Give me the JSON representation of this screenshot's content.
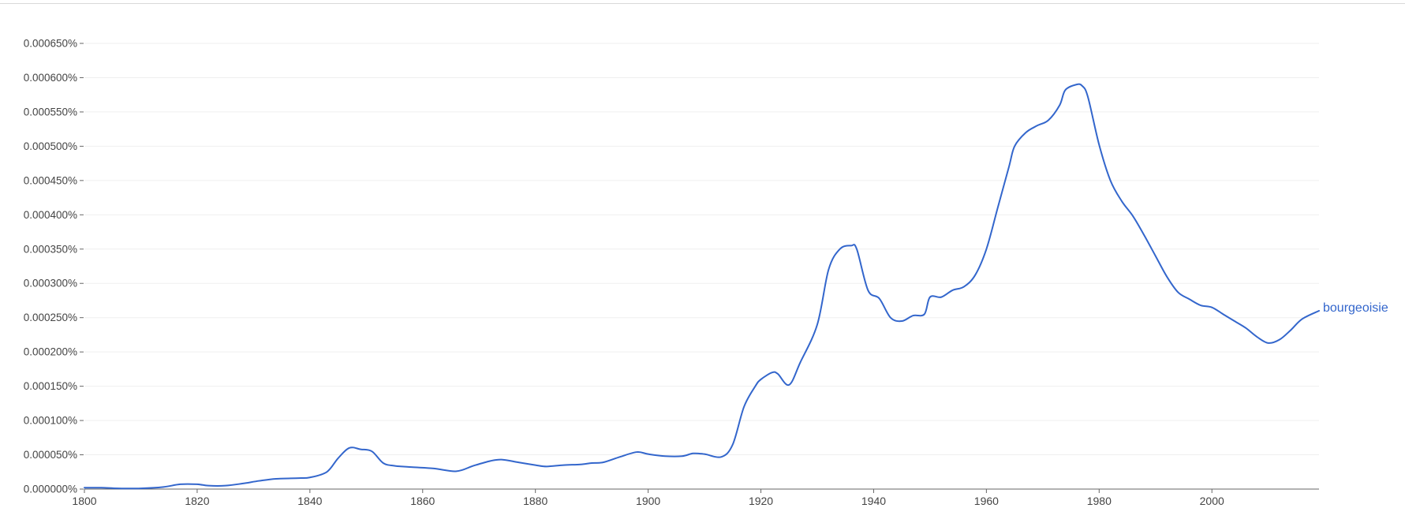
{
  "chart_data": {
    "type": "line",
    "title": "",
    "xlabel": "",
    "ylabel": "",
    "xlim": [
      1800,
      2019
    ],
    "ylim": [
      0,
      0.00065
    ],
    "y_unit": "%",
    "grid": true,
    "legend": "inline label at line end (right)",
    "colors": {
      "series": "#3366cc",
      "axis": "#666666",
      "grid": "#efefef",
      "tick_text": "#444444"
    },
    "y_ticks": [
      {
        "value": 0.0,
        "label": "0.000000%"
      },
      {
        "value": 5e-05,
        "label": "0.000050%"
      },
      {
        "value": 0.0001,
        "label": "0.000100%"
      },
      {
        "value": 0.00015,
        "label": "0.000150%"
      },
      {
        "value": 0.0002,
        "label": "0.000200%"
      },
      {
        "value": 0.00025,
        "label": "0.000250%"
      },
      {
        "value": 0.0003,
        "label": "0.000300%"
      },
      {
        "value": 0.00035,
        "label": "0.000350%"
      },
      {
        "value": 0.0004,
        "label": "0.000400%"
      },
      {
        "value": 0.00045,
        "label": "0.000450%"
      },
      {
        "value": 0.0005,
        "label": "0.000500%"
      },
      {
        "value": 0.00055,
        "label": "0.000550%"
      },
      {
        "value": 0.0006,
        "label": "0.000600%"
      },
      {
        "value": 0.00065,
        "label": "0.000650%"
      }
    ],
    "x_ticks": [
      {
        "value": 1800,
        "label": "1800"
      },
      {
        "value": 1820,
        "label": "1820"
      },
      {
        "value": 1840,
        "label": "1840"
      },
      {
        "value": 1860,
        "label": "1860"
      },
      {
        "value": 1880,
        "label": "1880"
      },
      {
        "value": 1900,
        "label": "1900"
      },
      {
        "value": 1920,
        "label": "1920"
      },
      {
        "value": 1940,
        "label": "1940"
      },
      {
        "value": 1960,
        "label": "1960"
      },
      {
        "value": 1980,
        "label": "1980"
      },
      {
        "value": 2000,
        "label": "2000"
      }
    ],
    "series": [
      {
        "name": "bourgeoisie",
        "x": [
          1800,
          1803,
          1806,
          1810,
          1814,
          1817,
          1820,
          1822,
          1825,
          1828,
          1831,
          1834,
          1838,
          1840,
          1843,
          1845,
          1847,
          1849,
          1851,
          1853,
          1855,
          1858,
          1862,
          1866,
          1869,
          1872,
          1874,
          1877,
          1880,
          1882,
          1885,
          1888,
          1890,
          1892,
          1895,
          1898,
          1900,
          1903,
          1906,
          1908,
          1910,
          1913,
          1915,
          1917,
          1919,
          1920,
          1922,
          1923,
          1925,
          1927,
          1930,
          1932,
          1934,
          1936,
          1937,
          1939,
          1941,
          1943,
          1945,
          1947,
          1949,
          1950,
          1952,
          1954,
          1956,
          1958,
          1960,
          1962,
          1964,
          1965,
          1967,
          1969,
          1971,
          1973,
          1974,
          1976,
          1977,
          1978,
          1980,
          1982,
          1984,
          1986,
          1988,
          1990,
          1992,
          1994,
          1996,
          1998,
          2000,
          2002,
          2004,
          2006,
          2008,
          2010,
          2012,
          2014,
          2016,
          2019
        ],
        "y": [
          2e-06,
          2e-06,
          1e-06,
          1e-06,
          3e-06,
          7e-06,
          7e-06,
          5e-06,
          5e-06,
          8e-06,
          1.2e-05,
          1.5e-05,
          1.6e-05,
          1.7e-05,
          2.5e-05,
          4.5e-05,
          6e-05,
          5.8e-05,
          5.5e-05,
          3.8e-05,
          3.4e-05,
          3.2e-05,
          3e-05,
          2.6e-05,
          3.4e-05,
          4.1e-05,
          4.3e-05,
          3.9e-05,
          3.5e-05,
          3.3e-05,
          3.5e-05,
          3.6e-05,
          3.8e-05,
          3.9e-05,
          4.7e-05,
          5.4e-05,
          5.1e-05,
          4.8e-05,
          4.8e-05,
          5.2e-05,
          5.1e-05,
          4.7e-05,
          6.5e-05,
          0.00012,
          0.00015,
          0.00016,
          0.00017,
          0.000168,
          0.000152,
          0.000185,
          0.00024,
          0.00032,
          0.00035,
          0.000355,
          0.00035,
          0.00029,
          0.000278,
          0.00025,
          0.000245,
          0.000253,
          0.000255,
          0.00028,
          0.00028,
          0.00029,
          0.000295,
          0.000312,
          0.00035,
          0.00041,
          0.00047,
          0.0005,
          0.00052,
          0.00053,
          0.000538,
          0.00056,
          0.000582,
          0.00059,
          0.000588,
          0.000572,
          0.000502,
          0.00045,
          0.00042,
          0.000398,
          0.00037,
          0.00034,
          0.00031,
          0.000287,
          0.000277,
          0.000268,
          0.000265,
          0.000255,
          0.000245,
          0.000235,
          0.000222,
          0.000213,
          0.000218,
          0.000232,
          0.000248,
          0.00026
        ]
      }
    ]
  }
}
